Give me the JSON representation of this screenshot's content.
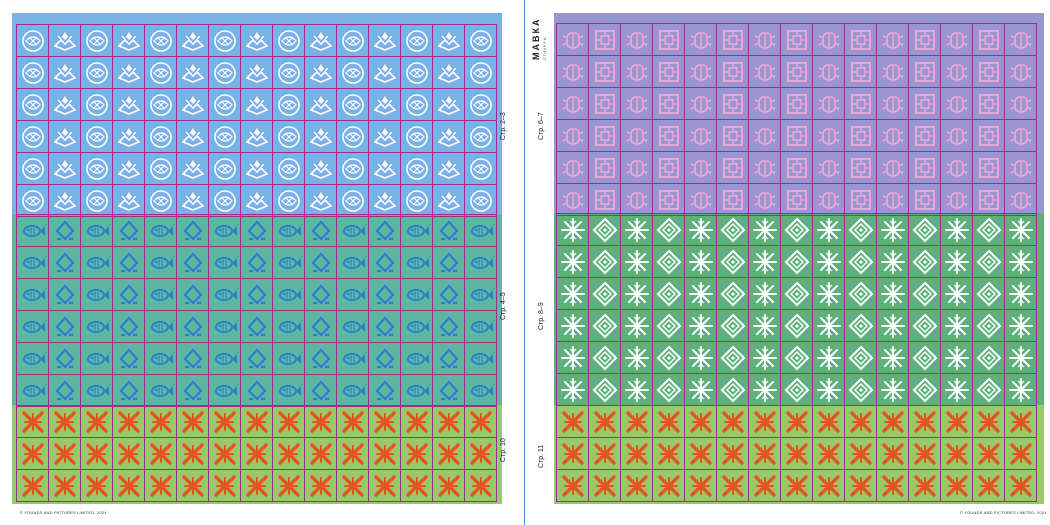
{
  "left_page": {
    "bands": [
      {
        "label": "Стр. 2–3",
        "color": "#7ab2e8",
        "icons": [
          "sun-disc-icon",
          "ornament-crown-icon"
        ]
      },
      {
        "label": "Стр. 4–5",
        "color": "#5fb5a0",
        "icons": [
          "fish-icon",
          "rhombus-hook-icon"
        ]
      },
      {
        "label": "Стр. 10",
        "color": "#98c96a",
        "icons": [
          "cross-knot-icon"
        ]
      }
    ],
    "copyright": "© FOUNDS AND PICTURES LIMITED, 2024"
  },
  "right_page": {
    "bands": [
      {
        "label": "Стр. 6–7",
        "color": "#9b95d4",
        "icons": [
          "beetle-icon",
          "square-knot-icon"
        ]
      },
      {
        "label": "Стр. 8–9",
        "color": "#5fb07c",
        "icons": [
          "snowflake-star-icon",
          "rhombus-ornament-icon"
        ]
      },
      {
        "label": "Стр. 11",
        "color": "#98c96a",
        "icons": [
          "cross-knot-icon"
        ]
      }
    ],
    "brand": "МАВКА",
    "brand_sub": "СТИКЕРЫ",
    "copyright": "© FOUNDS AND PICTURES LIMITED, 2024"
  },
  "colors": {
    "grid_line": "#9a2f8c",
    "left_top": "#7ab2e8",
    "left_mid": "#5fb5a0",
    "left_bottom": "#98c96a",
    "right_top": "#9b95d4",
    "right_mid": "#5fb07c",
    "right_bottom": "#98c96a",
    "sticker_white": "#ffffff",
    "sticker_blue": "#2a7fd4",
    "sticker_pink": "#e6a9d3",
    "sticker_orange": "#e7541f"
  }
}
